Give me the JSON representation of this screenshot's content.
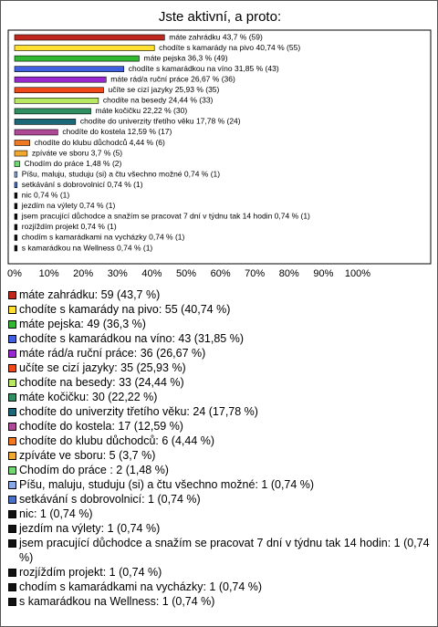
{
  "chart_data": {
    "type": "hbar",
    "title": "Jste aktivní, a proto:",
    "categories": [
      "máte zahrádku",
      "chodíte s kamarády na pivo",
      "máte pejska",
      "chodíte s kamarádkou na víno",
      "máte rád/a ruční práce",
      "učíte se cizí jazyky",
      "chodíte na besedy",
      "máte kočičku",
      "chodíte do univerzity třetího věku",
      "chodíte do kostela",
      "chodíte do klubu důchodců",
      "zpíváte ve sboru",
      "Chodím do práce",
      "Píšu, maluju, studuju (si) a čtu všechno možné",
      "setkávání s dobrovolnicí",
      "nic",
      "jezdím na výlety",
      "jsem pracující důchodce a snažím se pracovat 7 dní v týdnu tak 14 hodin",
      "rozjíždím projekt",
      "chodím s kamarádkami na vycházky",
      "s kamarádkou na Wellness"
    ],
    "values": [
      43.7,
      40.74,
      36.3,
      31.85,
      26.67,
      25.93,
      24.44,
      22.22,
      17.78,
      12.59,
      4.44,
      3.7,
      1.48,
      0.74,
      0.74,
      0.74,
      0.74,
      0.74,
      0.74,
      0.74,
      0.74
    ],
    "value_labels": [
      "máte zahrádku 43,7 % (59)",
      "chodíte s kamarády na pivo 40,74 % (55)",
      "máte pejska 36,3 % (49)",
      "chodíte s kamarádkou na víno 31,85 % (43)",
      "máte rád/a ruční práce 26,67 % (36)",
      "učíte se cizí jazyky 25,93 % (35)",
      "chodíte na besedy 24,44 % (33)",
      "máte kočičku 22,22 % (30)",
      "chodíte do univerzity třetího věku 17,78 % (24)",
      "chodíte do kostela 12,59 % (17)",
      "chodíte do klubu důchodců 4,44 % (6)",
      "zpíváte ve sboru 3,7 % (5)",
      "Chodím do práce  1,48 % (2)",
      "Píšu, maluju, studuju (si) a čtu všechno možné 0,74 % (1)",
      "setkávání s dobrovolnicí 0,74 % (1)",
      "nic 0,74 % (1)",
      "jezdím na výlety 0,74 % (1)",
      "jsem pracující důchodce a snažím se pracovat 7 dní v týdnu tak 14 hodin 0,74 % (1)",
      "rozjíždím projekt 0,74 % (1)",
      "chodím s kamarádkami na vycházky 0,74 % (1)",
      "s kamarádkou na Wellness 0,74 % (1)"
    ],
    "legend_labels": [
      "máte zahrádku: 59 (43,7 %)",
      "chodíte s kamarády na pivo: 55 (40,74 %)",
      "máte pejska: 49 (36,3 %)",
      "chodíte s kamarádkou na víno: 43 (31,85 %)",
      "máte rád/a ruční práce: 36 (26,67 %)",
      "učíte se cizí jazyky: 35 (25,93 %)",
      "chodíte na besedy: 33 (24,44 %)",
      "máte kočičku: 30 (22,22 %)",
      "chodíte do univerzity třetího věku: 24 (17,78 %)",
      "chodíte do kostela: 17 (12,59 %)",
      "chodíte do klubu důchodců: 6 (4,44 %)",
      "zpíváte ve sboru: 5 (3,7 %)",
      "Chodím do práce : 2 (1,48 %)",
      "Píšu, maluju, studuju (si) a čtu všechno možné: 1 (0,74 %)",
      "setkávání s dobrovolnicí: 1 (0,74 %)",
      "nic: 1 (0,74 %)",
      "jezdím na výlety: 1 (0,74 %)",
      "jsem pracující důchodce a snažím se pracovat 7 dní v týdnu tak 14 hodin: 1 (0,74 %)",
      "rozjíždím projekt: 1 (0,74 %)",
      "chodím s kamarádkami na vycházky: 1 (0,74 %)",
      "s kamarádkou na Wellness: 1 (0,74 %)"
    ],
    "colors": [
      "#c0281e",
      "#ffe030",
      "#30b830",
      "#4060e0",
      "#9a28d0",
      "#f04818",
      "#b8e860",
      "#2e9060",
      "#1a6878",
      "#b04898",
      "#f07820",
      "#f0a830",
      "#70d870",
      "#88a8e8",
      "#4870c8",
      "#111111",
      "#111111",
      "#111111",
      "#111111",
      "#111111",
      "#111111"
    ],
    "xlim": [
      0,
      100
    ],
    "xticks": [
      {
        "value": 0,
        "label": "0%"
      },
      {
        "value": 10,
        "label": "10%"
      },
      {
        "value": 20,
        "label": "20%"
      },
      {
        "value": 30,
        "label": "30%"
      },
      {
        "value": 40,
        "label": "40%"
      },
      {
        "value": 50,
        "label": "50%"
      },
      {
        "value": 60,
        "label": "60%"
      },
      {
        "value": 70,
        "label": "70%"
      },
      {
        "value": 80,
        "label": "80%"
      },
      {
        "value": 90,
        "label": "90%"
      },
      {
        "value": 100,
        "label": "100%"
      }
    ],
    "grid": false
  }
}
